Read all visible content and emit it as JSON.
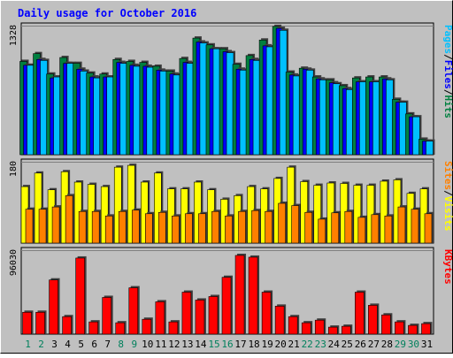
{
  "chart_data": {
    "title": "Daily usage for October 2016",
    "days": [
      "1",
      "2",
      "3",
      "4",
      "5",
      "6",
      "7",
      "8",
      "9",
      "10",
      "11",
      "12",
      "13",
      "14",
      "15",
      "16",
      "17",
      "18",
      "19",
      "20",
      "21",
      "22",
      "23",
      "24",
      "25",
      "26",
      "27",
      "28",
      "29",
      "30",
      "31"
    ],
    "weekend_days": [
      "1",
      "2",
      "8",
      "9",
      "15",
      "16",
      "22",
      "23",
      "29",
      "30"
    ],
    "panels": [
      {
        "type": "bar",
        "ylabel_parts": [
          "Pages",
          "/",
          "Files",
          "/",
          "Hits"
        ],
        "y_tick_label": "1328",
        "y_max": 1328,
        "series": [
          {
            "name": "Hits",
            "color": "#008040",
            "values": [
              960,
              1040,
              830,
              1000,
              940,
              840,
              830,
              980,
              960,
              950,
              910,
              860,
              990,
              1200,
              1130,
              1090,
              930,
              1020,
              1180,
              1320,
              850,
              890,
              800,
              770,
              710,
              790,
              800,
              800,
              570,
              420,
              160
            ]
          },
          {
            "name": "Files",
            "color": "#0000ff",
            "values": [
              920,
              980,
              790,
              940,
              880,
              800,
              800,
              950,
              920,
              910,
              870,
              830,
              950,
              1160,
              1090,
              1060,
              880,
              980,
              1120,
              1300,
              820,
              880,
              780,
              740,
              680,
              750,
              750,
              780,
              540,
              390,
              140
            ]
          },
          {
            "name": "Pages",
            "color": "#00c0ff",
            "values": [
              920,
              970,
              800,
              940,
              860,
              790,
              800,
              940,
              910,
              900,
              860,
              820,
              940,
              1150,
              1090,
              1050,
              870,
              970,
              1110,
              1280,
              810,
              870,
              770,
              730,
              670,
              750,
              750,
              770,
              540,
              390,
              140
            ]
          }
        ]
      },
      {
        "type": "bar",
        "ylabel_parts": [
          "Sites",
          "/",
          "Visits"
        ],
        "y_tick_label": "180",
        "y_max": 180,
        "series": [
          {
            "name": "Visits",
            "color": "#ffff00",
            "values": [
              125,
              155,
              118,
              158,
              135,
              130,
              125,
              168,
              172,
              135,
              155,
              120,
              120,
              135,
              118,
              97,
              105,
              125,
              120,
              143,
              168,
              136,
              128,
              133,
              132,
              128,
              128,
              137,
              140,
              110,
              120
            ]
          },
          {
            "name": "Sites",
            "color": "#ff8000",
            "values": [
              75,
              75,
              80,
              105,
              70,
              70,
              60,
              70,
              73,
              65,
              68,
              60,
              65,
              65,
              70,
              60,
              70,
              72,
              70,
              88,
              83,
              68,
              53,
              67,
              70,
              57,
              63,
              60,
              80,
              75,
              65
            ]
          }
        ]
      },
      {
        "type": "bar",
        "ylabel_parts": [
          "KBytes"
        ],
        "y_tick_label": "96030",
        "y_max": 96030,
        "series": [
          {
            "name": "KBytes",
            "color": "#ff0000",
            "values": [
              25000,
              25000,
              62000,
              20000,
              87000,
              14000,
              42000,
              13000,
              53000,
              17000,
              37000,
              14000,
              48000,
              39000,
              43000,
              65000,
              90000,
              88000,
              48000,
              32000,
              20000,
              13000,
              16000,
              8000,
              9000,
              48000,
              33000,
              22000,
              14000,
              10000,
              12000
            ]
          }
        ]
      }
    ],
    "colors": {
      "background": "#c0c0c0",
      "title_text": "#0000ff",
      "weekday_label": "#000000",
      "weekend_label": "#00805c",
      "pages_label": "#00c0ff",
      "files_label": "#0000ff",
      "hits_label": "#008040",
      "sites_label": "#ff8000",
      "visits_label": "#ffff00",
      "kbytes_label": "#ff0000"
    }
  }
}
